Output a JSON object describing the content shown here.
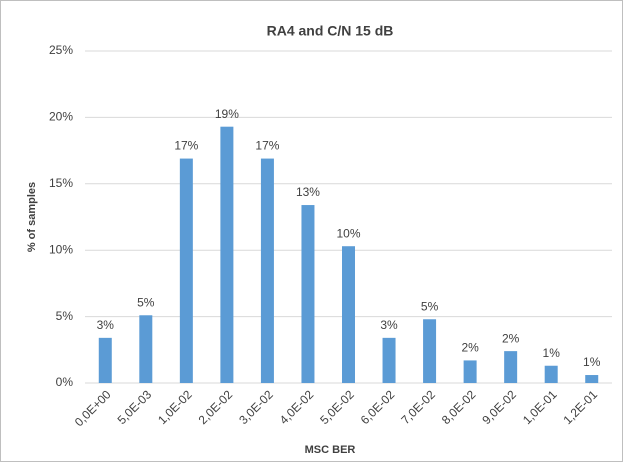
{
  "chart_data": {
    "type": "bar",
    "title": "RA4 and C/N 15 dB",
    "x_label": "MSC BER",
    "y_label": "% of samples",
    "categories": [
      "0,0E+00",
      "5,0E-03",
      "1,0E-02",
      "2,0E-02",
      "3,0E-02",
      "4,0E-02",
      "5,0E-02",
      "6,0E-02",
      "7,0E-02",
      "8,0E-02",
      "9,0E-02",
      "1,0E-01",
      "1,2E-01"
    ],
    "values": [
      3.4,
      5.1,
      16.9,
      19.3,
      16.9,
      13.4,
      10.3,
      3.4,
      4.8,
      1.7,
      2.4,
      1.3,
      0.6
    ],
    "value_labels": [
      "3%",
      "5%",
      "17%",
      "19%",
      "17%",
      "13%",
      "10%",
      "3%",
      "5%",
      "2%",
      "2%",
      "1%",
      "1%"
    ],
    "color": "#5b9bd5",
    "ylim": [
      0,
      25
    ],
    "yticks": [
      {
        "value": 0,
        "label": "0%"
      },
      {
        "value": 5,
        "label": "5%"
      },
      {
        "value": 10,
        "label": "10%"
      },
      {
        "value": 15,
        "label": "15%"
      },
      {
        "value": 20,
        "label": "20%"
      },
      {
        "value": 25,
        "label": "25%"
      }
    ],
    "grid": true
  }
}
